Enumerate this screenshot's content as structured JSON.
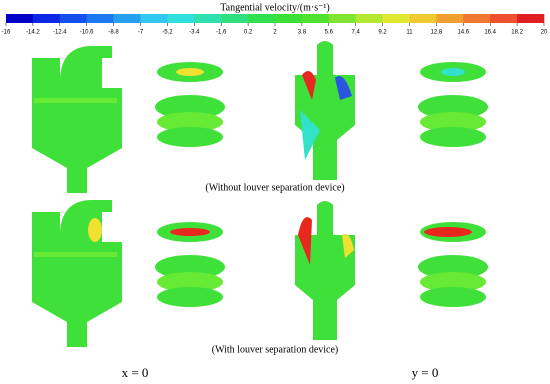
{
  "colorbar": {
    "title": "Tangential velocity/(m·s⁻¹)",
    "ticks": [
      -16,
      -14.2,
      -12.4,
      -10.6,
      -8.8,
      -7,
      -5.2,
      -3.4,
      -1.6,
      0.2,
      2,
      3.8,
      5.6,
      7.4,
      9.2,
      11,
      12.8,
      14.6,
      16.4,
      18.2,
      20
    ],
    "colors": [
      "#0000c8",
      "#0a28e6",
      "#1450f0",
      "#1e78f0",
      "#28a0f0",
      "#32c8f0",
      "#30e0dc",
      "#30e0b0",
      "#30e080",
      "#30e050",
      "#3ce036",
      "#50e030",
      "#80e430",
      "#b4e830",
      "#e0e830",
      "#f0c830",
      "#f0a030",
      "#f07830",
      "#f05030",
      "#e02020"
    ]
  },
  "captions": [
    "(Without louver separation device)",
    "(With louver separation device)"
  ],
  "section_labels": [
    "x = 0",
    "y = 0"
  ]
}
